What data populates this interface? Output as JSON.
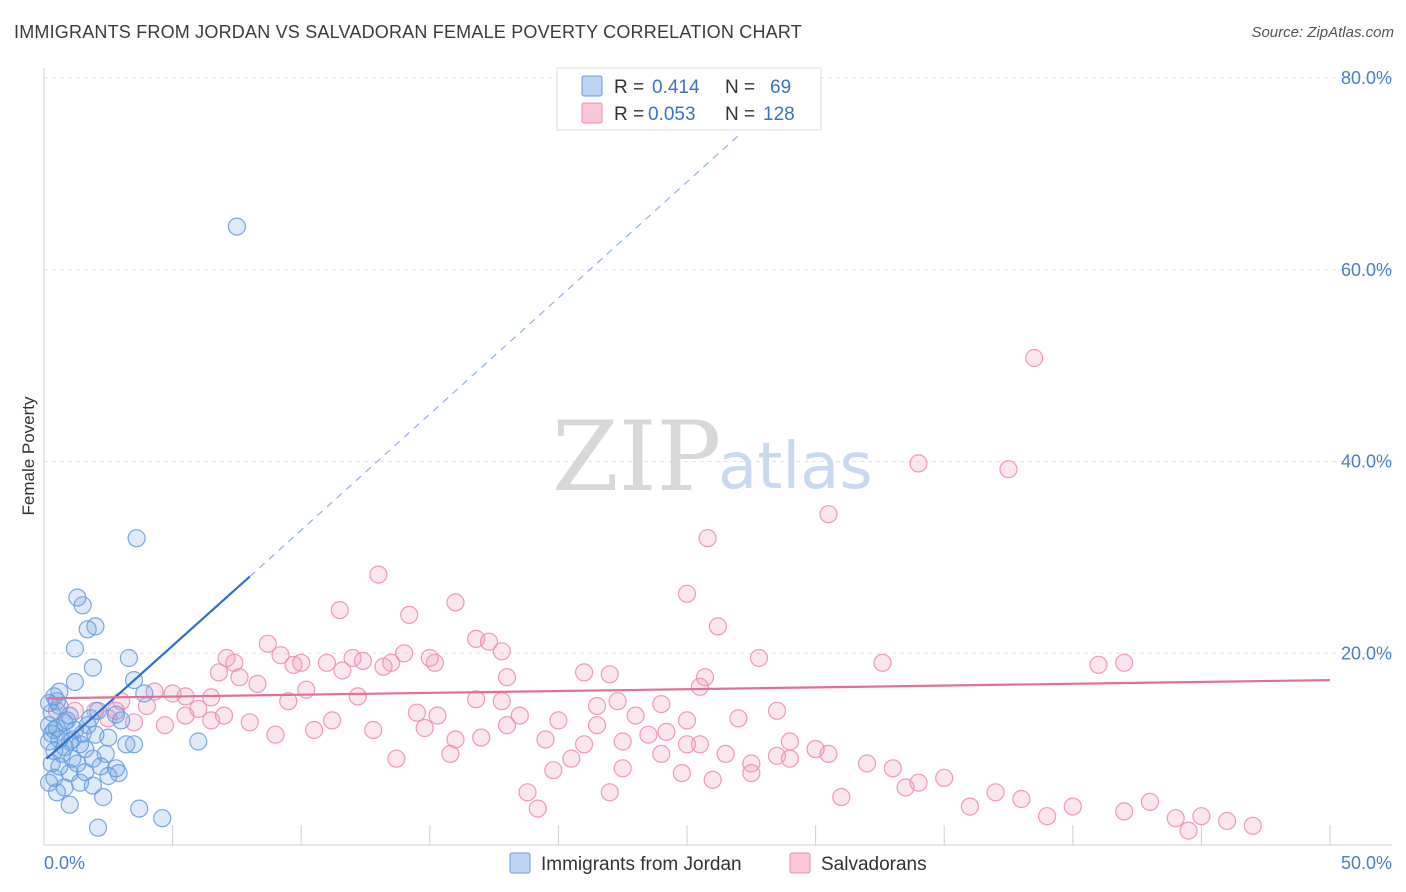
{
  "header": {
    "title": "IMMIGRANTS FROM JORDAN VS SALVADORAN FEMALE POVERTY CORRELATION CHART",
    "source": "Source: ZipAtlas.com"
  },
  "watermark": {
    "zip": "ZIP",
    "atlas": "atlas"
  },
  "legend": {
    "rows": [
      {
        "r_label": "R =",
        "r_value": "0.414",
        "n_label": "N =",
        "n_value": "69",
        "color": "#6aa0e0"
      },
      {
        "r_label": "R =",
        "r_value": "0.053",
        "n_label": "N =",
        "n_value": "128",
        "color": "#ee8fb0"
      }
    ]
  },
  "chart_data": {
    "type": "scatter",
    "title": "IMMIGRANTS FROM JORDAN VS SALVADORAN FEMALE POVERTY CORRELATION CHART",
    "xlabel": "",
    "ylabel": "Female Poverty",
    "xlim": [
      0,
      50
    ],
    "ylim": [
      0,
      80
    ],
    "x_ticks": [
      0,
      50
    ],
    "x_tick_labels": [
      "0.0%",
      "50.0%"
    ],
    "y_ticks": [
      20,
      40,
      60,
      80
    ],
    "y_tick_labels": [
      "20.0%",
      "40.0%",
      "60.0%",
      "80.0%"
    ],
    "grid": true,
    "legend_position": "top-center",
    "series": [
      {
        "name": "Immigrants from Jordan",
        "color": "#6aa0e0",
        "trend": {
          "x0": 0.1,
          "y0": 9.0,
          "x1": 8.0,
          "y1": 28.0,
          "dash_to_x": 27.0,
          "dash_to_y": 74.0
        },
        "points": [
          [
            7.5,
            64.5
          ],
          [
            3.6,
            32.0
          ],
          [
            1.3,
            25.8
          ],
          [
            1.5,
            25.0
          ],
          [
            2.0,
            22.8
          ],
          [
            1.7,
            22.5
          ],
          [
            1.2,
            20.5
          ],
          [
            3.3,
            19.5
          ],
          [
            1.9,
            18.5
          ],
          [
            1.2,
            17.0
          ],
          [
            3.5,
            17.2
          ],
          [
            3.9,
            15.8
          ],
          [
            0.4,
            15.5
          ],
          [
            0.5,
            15.0
          ],
          [
            0.2,
            14.8
          ],
          [
            0.6,
            14.5
          ],
          [
            0.3,
            13.8
          ],
          [
            1.0,
            13.5
          ],
          [
            1.8,
            13.2
          ],
          [
            0.8,
            12.8
          ],
          [
            2.8,
            13.6
          ],
          [
            3.0,
            13.0
          ],
          [
            0.2,
            12.5
          ],
          [
            0.5,
            12.2
          ],
          [
            1.2,
            12.0
          ],
          [
            1.5,
            11.6
          ],
          [
            0.3,
            11.6
          ],
          [
            0.6,
            11.0
          ],
          [
            2.0,
            11.5
          ],
          [
            2.5,
            11.2
          ],
          [
            1.0,
            10.8
          ],
          [
            1.4,
            10.5
          ],
          [
            0.2,
            10.8
          ],
          [
            0.8,
            10.2
          ],
          [
            3.2,
            10.5
          ],
          [
            3.5,
            10.5
          ],
          [
            0.4,
            9.8
          ],
          [
            0.7,
            9.5
          ],
          [
            1.1,
            9.0
          ],
          [
            1.9,
            9.0
          ],
          [
            6.0,
            10.8
          ],
          [
            0.3,
            8.5
          ],
          [
            0.6,
            8.2
          ],
          [
            1.3,
            8.5
          ],
          [
            2.2,
            8.2
          ],
          [
            2.8,
            8.0
          ],
          [
            1.0,
            7.5
          ],
          [
            1.6,
            7.6
          ],
          [
            2.5,
            7.2
          ],
          [
            0.4,
            7.0
          ],
          [
            1.4,
            6.5
          ],
          [
            1.9,
            6.2
          ],
          [
            0.2,
            6.5
          ],
          [
            0.8,
            6.0
          ],
          [
            2.3,
            5.0
          ],
          [
            1.0,
            4.2
          ],
          [
            3.7,
            3.8
          ],
          [
            4.6,
            2.8
          ],
          [
            2.1,
            1.8
          ],
          [
            0.5,
            5.5
          ],
          [
            1.7,
            12.5
          ],
          [
            2.1,
            14.0
          ],
          [
            0.9,
            13.0
          ],
          [
            0.6,
            16.0
          ],
          [
            2.4,
            9.5
          ],
          [
            1.1,
            11.0
          ],
          [
            0.4,
            12.0
          ],
          [
            1.6,
            10.0
          ],
          [
            2.9,
            7.5
          ]
        ]
      },
      {
        "name": "Salvadorans",
        "color": "#ee8fb0",
        "trend": {
          "x0": 0.1,
          "y0": 15.3,
          "x1": 50.0,
          "y1": 17.2
        },
        "points": [
          [
            38.5,
            50.8
          ],
          [
            34.0,
            39.8
          ],
          [
            37.5,
            39.2
          ],
          [
            30.5,
            34.5
          ],
          [
            25.8,
            32.0
          ],
          [
            13.0,
            28.2
          ],
          [
            25.0,
            26.2
          ],
          [
            16.0,
            25.3
          ],
          [
            11.5,
            24.5
          ],
          [
            14.2,
            24.0
          ],
          [
            26.2,
            22.8
          ],
          [
            16.8,
            21.5
          ],
          [
            17.3,
            21.2
          ],
          [
            8.7,
            21.0
          ],
          [
            9.2,
            19.8
          ],
          [
            14.0,
            20.0
          ],
          [
            17.8,
            20.2
          ],
          [
            12.0,
            19.5
          ],
          [
            15.0,
            19.5
          ],
          [
            10.0,
            19.0
          ],
          [
            11.0,
            19.0
          ],
          [
            12.4,
            19.2
          ],
          [
            13.5,
            19.0
          ],
          [
            15.2,
            19.0
          ],
          [
            7.1,
            19.5
          ],
          [
            7.4,
            19.0
          ],
          [
            9.7,
            18.8
          ],
          [
            11.6,
            18.2
          ],
          [
            13.2,
            18.6
          ],
          [
            6.8,
            18.0
          ],
          [
            7.6,
            17.5
          ],
          [
            18.0,
            17.5
          ],
          [
            21.0,
            18.0
          ],
          [
            22.0,
            17.8
          ],
          [
            25.7,
            17.5
          ],
          [
            27.8,
            19.5
          ],
          [
            32.6,
            19.0
          ],
          [
            41.0,
            18.8
          ],
          [
            42.0,
            19.0
          ],
          [
            25.5,
            16.5
          ],
          [
            8.3,
            16.8
          ],
          [
            10.2,
            16.2
          ],
          [
            4.3,
            16.0
          ],
          [
            5.0,
            15.8
          ],
          [
            5.5,
            15.5
          ],
          [
            6.5,
            15.4
          ],
          [
            3.0,
            15.0
          ],
          [
            9.5,
            15.0
          ],
          [
            12.2,
            15.5
          ],
          [
            16.8,
            15.2
          ],
          [
            22.3,
            15.0
          ],
          [
            17.8,
            15.0
          ],
          [
            21.5,
            14.5
          ],
          [
            24.0,
            14.7
          ],
          [
            4.0,
            14.5
          ],
          [
            6.0,
            14.2
          ],
          [
            2.0,
            14.0
          ],
          [
            2.8,
            14.0
          ],
          [
            0.5,
            14.0
          ],
          [
            1.2,
            14.0
          ],
          [
            5.5,
            13.5
          ],
          [
            7.0,
            13.5
          ],
          [
            14.5,
            13.8
          ],
          [
            15.3,
            13.5
          ],
          [
            18.5,
            13.5
          ],
          [
            20.0,
            13.0
          ],
          [
            25.0,
            13.0
          ],
          [
            27.0,
            13.2
          ],
          [
            28.5,
            14.0
          ],
          [
            2.5,
            13.2
          ],
          [
            3.5,
            12.8
          ],
          [
            4.7,
            12.5
          ],
          [
            10.5,
            12.0
          ],
          [
            12.8,
            12.0
          ],
          [
            17.0,
            11.2
          ],
          [
            19.5,
            11.0
          ],
          [
            21.0,
            10.5
          ],
          [
            22.5,
            10.8
          ],
          [
            23.5,
            11.5
          ],
          [
            24.2,
            11.8
          ],
          [
            29.0,
            10.8
          ],
          [
            25.0,
            10.5
          ],
          [
            26.5,
            9.5
          ],
          [
            25.5,
            10.5
          ],
          [
            24.0,
            9.5
          ],
          [
            28.5,
            9.3
          ],
          [
            29.0,
            9.0
          ],
          [
            27.5,
            8.5
          ],
          [
            30.0,
            10.0
          ],
          [
            32.0,
            8.5
          ],
          [
            33.0,
            8.0
          ],
          [
            34.0,
            6.5
          ],
          [
            35.0,
            7.0
          ],
          [
            37.0,
            5.5
          ],
          [
            38.0,
            4.8
          ],
          [
            40.0,
            4.0
          ],
          [
            42.0,
            3.5
          ],
          [
            44.0,
            2.8
          ],
          [
            20.5,
            9.0
          ],
          [
            19.8,
            7.8
          ],
          [
            22.5,
            8.0
          ],
          [
            24.8,
            7.5
          ],
          [
            26.0,
            6.8
          ],
          [
            18.8,
            5.5
          ],
          [
            19.2,
            3.8
          ],
          [
            22.0,
            5.5
          ],
          [
            27.5,
            7.5
          ],
          [
            30.5,
            9.5
          ],
          [
            31.0,
            5.0
          ],
          [
            33.5,
            6.0
          ],
          [
            36.0,
            4.0
          ],
          [
            39.0,
            3.0
          ],
          [
            43.0,
            4.5
          ],
          [
            45.0,
            3.0
          ],
          [
            46.0,
            2.5
          ],
          [
            47.0,
            2.0
          ],
          [
            44.5,
            1.5
          ],
          [
            21.5,
            12.5
          ],
          [
            23.0,
            13.5
          ],
          [
            18.0,
            12.5
          ],
          [
            16.0,
            11.0
          ],
          [
            9.0,
            11.5
          ],
          [
            8.0,
            12.8
          ],
          [
            6.5,
            13.0
          ],
          [
            13.7,
            9.0
          ],
          [
            15.8,
            9.5
          ],
          [
            11.2,
            13.0
          ],
          [
            14.8,
            12.2
          ]
        ]
      }
    ]
  }
}
